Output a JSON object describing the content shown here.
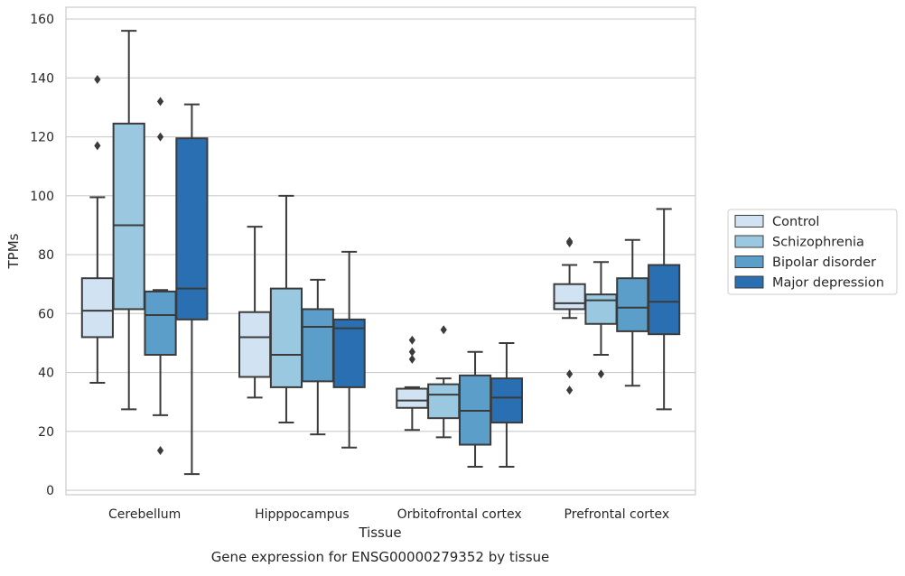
{
  "chart_data": {
    "type": "box",
    "xlabel": "Tissue",
    "ylabel": "TPMs",
    "caption": "Gene expression for ENSG00000279352 by tissue",
    "ylim": [
      -1.5,
      164
    ],
    "yticks": [
      0,
      20,
      40,
      60,
      80,
      100,
      120,
      140,
      160
    ],
    "grid": "horizontal",
    "legend_position": "right",
    "categories": [
      "Cerebellum",
      "Hipppocampus",
      "Orbitofrontal cortex",
      "Prefrontal cortex"
    ],
    "series": [
      {
        "name": "Control",
        "color": "#d1e2f2",
        "boxes": [
          {
            "whislo": 36.5,
            "q1": 52,
            "med": 61,
            "q3": 72,
            "whishi": 99.5,
            "fliers": [
              117,
              139.5
            ]
          },
          {
            "whislo": 31.5,
            "q1": 38.5,
            "med": 52,
            "q3": 60.5,
            "whishi": 89.5,
            "fliers": []
          },
          {
            "whislo": 20.5,
            "q1": 28,
            "med": 30.5,
            "q3": 34.5,
            "whishi": 35,
            "fliers": [
              44.5,
              47,
              51
            ]
          },
          {
            "whislo": 58.5,
            "q1": 61.5,
            "med": 63.5,
            "q3": 70,
            "whishi": 76.5,
            "fliers": [
              84,
              84.5,
              39.5,
              34
            ]
          }
        ]
      },
      {
        "name": "Schizophrenia",
        "color": "#9ac8e0",
        "boxes": [
          {
            "whislo": 27.5,
            "q1": 61.5,
            "med": 90,
            "q3": 124.5,
            "whishi": 156,
            "fliers": []
          },
          {
            "whislo": 23,
            "q1": 35,
            "med": 46,
            "q3": 68.5,
            "whishi": 100,
            "fliers": []
          },
          {
            "whislo": 18,
            "q1": 24.5,
            "med": 32.5,
            "q3": 36,
            "whishi": 38,
            "fliers": [
              54.5
            ]
          },
          {
            "whislo": 46,
            "q1": 56.5,
            "med": 64.5,
            "q3": 66.5,
            "whishi": 77.5,
            "fliers": [
              39.5
            ]
          }
        ]
      },
      {
        "name": "Bipolar disorder",
        "color": "#5a9ec9",
        "boxes": [
          {
            "whislo": 25.5,
            "q1": 46,
            "med": 59.5,
            "q3": 67.5,
            "whishi": 68,
            "fliers": [
              13.5,
              120,
              132
            ]
          },
          {
            "whislo": 19,
            "q1": 37,
            "med": 55.5,
            "q3": 61.5,
            "whishi": 71.5,
            "fliers": []
          },
          {
            "whislo": 8,
            "q1": 15.5,
            "med": 27,
            "q3": 39,
            "whishi": 47,
            "fliers": []
          },
          {
            "whislo": 35.5,
            "q1": 54,
            "med": 62,
            "q3": 72,
            "whishi": 85,
            "fliers": []
          }
        ]
      },
      {
        "name": "Major depression",
        "color": "#2a6fb1",
        "boxes": [
          {
            "whislo": 5.5,
            "q1": 58,
            "med": 68.5,
            "q3": 119.5,
            "whishi": 131,
            "fliers": []
          },
          {
            "whislo": 14.5,
            "q1": 35,
            "med": 55,
            "q3": 58,
            "whishi": 81,
            "fliers": []
          },
          {
            "whislo": 8,
            "q1": 23,
            "med": 31.5,
            "q3": 38,
            "whishi": 50,
            "fliers": []
          },
          {
            "whislo": 27.5,
            "q1": 53,
            "med": 64,
            "q3": 76.5,
            "whishi": 95.5,
            "fliers": []
          }
        ]
      }
    ]
  },
  "colors": {
    "grid": "#cccccc",
    "axes_edge": "#cccccc",
    "box_line": "#3b3b3b",
    "text": "#262626"
  }
}
